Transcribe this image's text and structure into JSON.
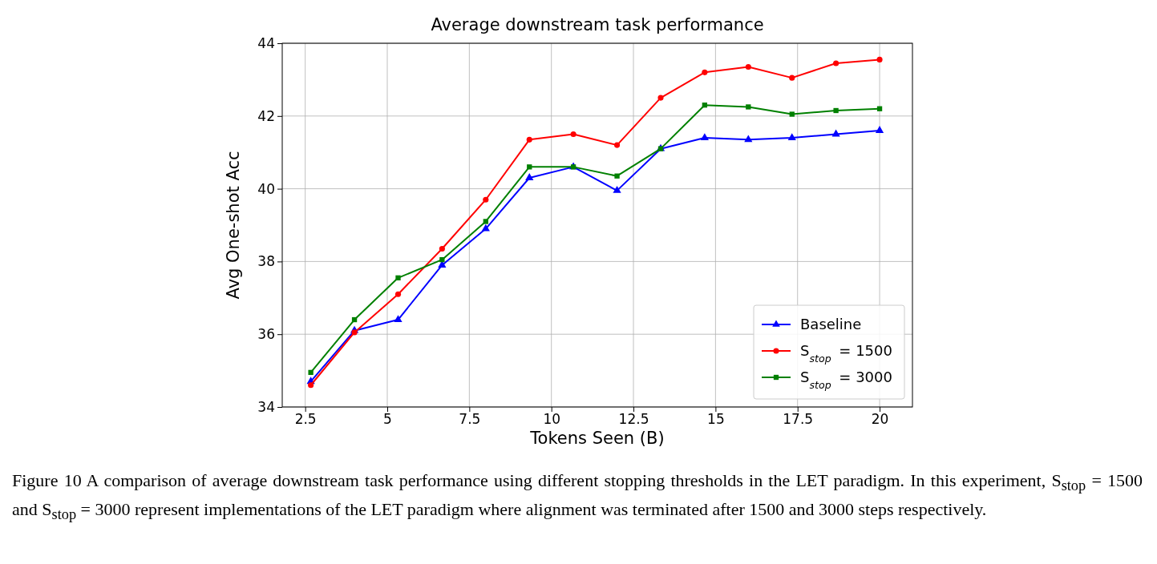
{
  "chart_data": {
    "type": "line",
    "title": "Average downstream task performance",
    "xlabel": "Tokens Seen (B)",
    "ylabel": "Avg One-shot Acc",
    "x": [
      2.67,
      4,
      5.33,
      6.67,
      8,
      9.33,
      10.67,
      12,
      13.33,
      14.67,
      16,
      17.33,
      18.67,
      20
    ],
    "series": [
      {
        "name": "Baseline",
        "color": "#0000ff",
        "marker": "triangle",
        "values": [
          34.7,
          36.1,
          36.4,
          37.9,
          38.9,
          40.3,
          40.6,
          39.95,
          41.1,
          41.4,
          41.35,
          41.4,
          41.5,
          41.6
        ]
      },
      {
        "name": "S$_{stop}$ = 1500",
        "color": "#ff0000",
        "marker": "circle",
        "values": [
          34.6,
          36.05,
          37.1,
          38.35,
          39.7,
          41.35,
          41.5,
          41.2,
          42.5,
          43.2,
          43.35,
          43.05,
          43.45,
          43.55
        ]
      },
      {
        "name": "S$_{stop}$ = 3000",
        "color": "#008000",
        "marker": "square",
        "values": [
          34.95,
          36.4,
          37.55,
          38.05,
          39.1,
          40.6,
          40.6,
          40.35,
          41.1,
          42.3,
          42.25,
          42.05,
          42.15,
          42.2
        ]
      }
    ],
    "xlim": [
      1.8,
      21
    ],
    "xticks": [
      2.5,
      5,
      7.5,
      10,
      12.5,
      15,
      17.5,
      20
    ],
    "ylim": [
      34,
      44
    ],
    "yticks": [
      34,
      36,
      38,
      40,
      42,
      44
    ],
    "grid": true,
    "legend": "bottom right",
    "line_style": "solid",
    "annotations": [
      "Figure 10  A comparison of average downstream task performance using different stopping thresholds in the LET paradigm. In this experiment, S$_{stop}$ = 1500 and S$_{stop}$ = 3000 represent implementations of the LET paradigm where alignment was terminated after 1500 and 3000 steps respectively."
    ]
  }
}
